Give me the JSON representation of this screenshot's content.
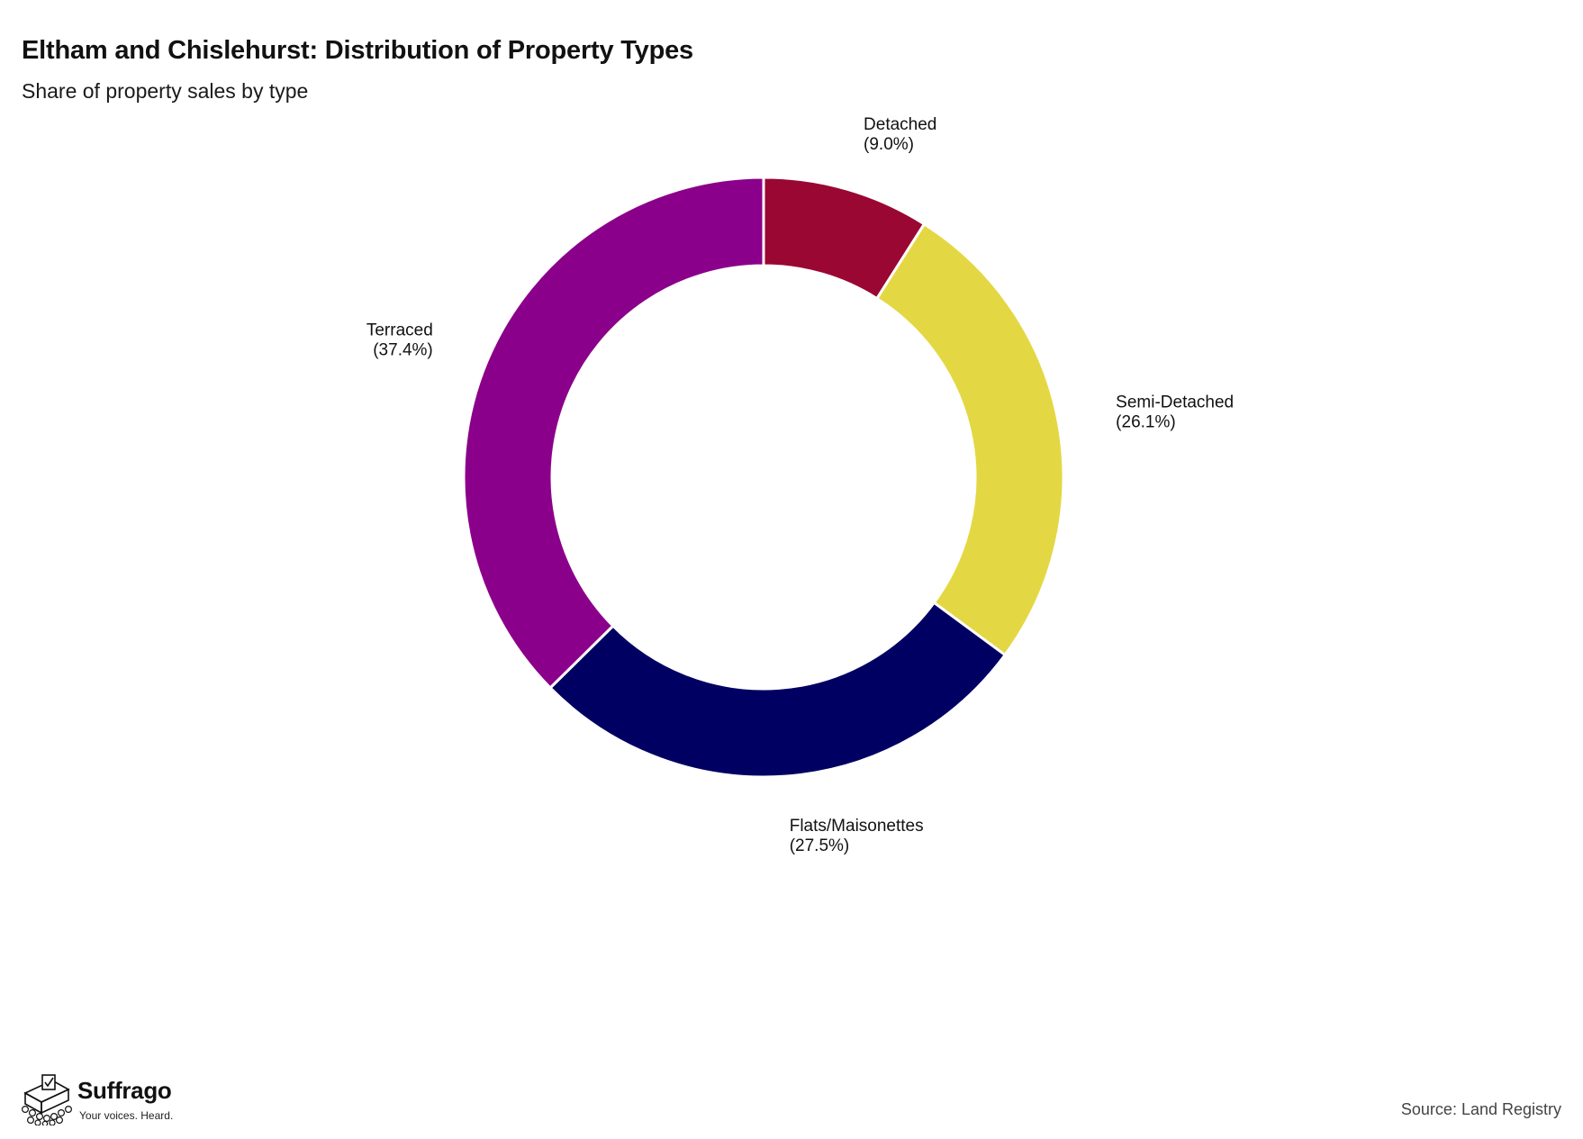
{
  "chart_data": {
    "type": "pie",
    "donut": true,
    "title": "Eltham and Chislehurst: Distribution of Property Types",
    "subtitle": "Share of property sales by type",
    "categories": [
      "Detached",
      "Semi-Detached",
      "Flats/Maisonettes",
      "Terraced"
    ],
    "values": [
      9.0,
      26.1,
      27.5,
      37.4
    ],
    "labels": [
      "(9.0%)",
      "(26.1%)",
      "(27.5%)",
      "(37.4%)"
    ],
    "colors": [
      "#9a0733",
      "#e3d843",
      "#000063",
      "#8b008b"
    ],
    "start": "12 o'clock",
    "direction": "clockwise",
    "legend": "none"
  },
  "branding": {
    "logo_name": "Suffrago",
    "tagline": "Your voices. Heard.",
    "logo_icon": "ballot-box-crowd-icon"
  },
  "footer": {
    "source": "Source: Land Registry"
  }
}
